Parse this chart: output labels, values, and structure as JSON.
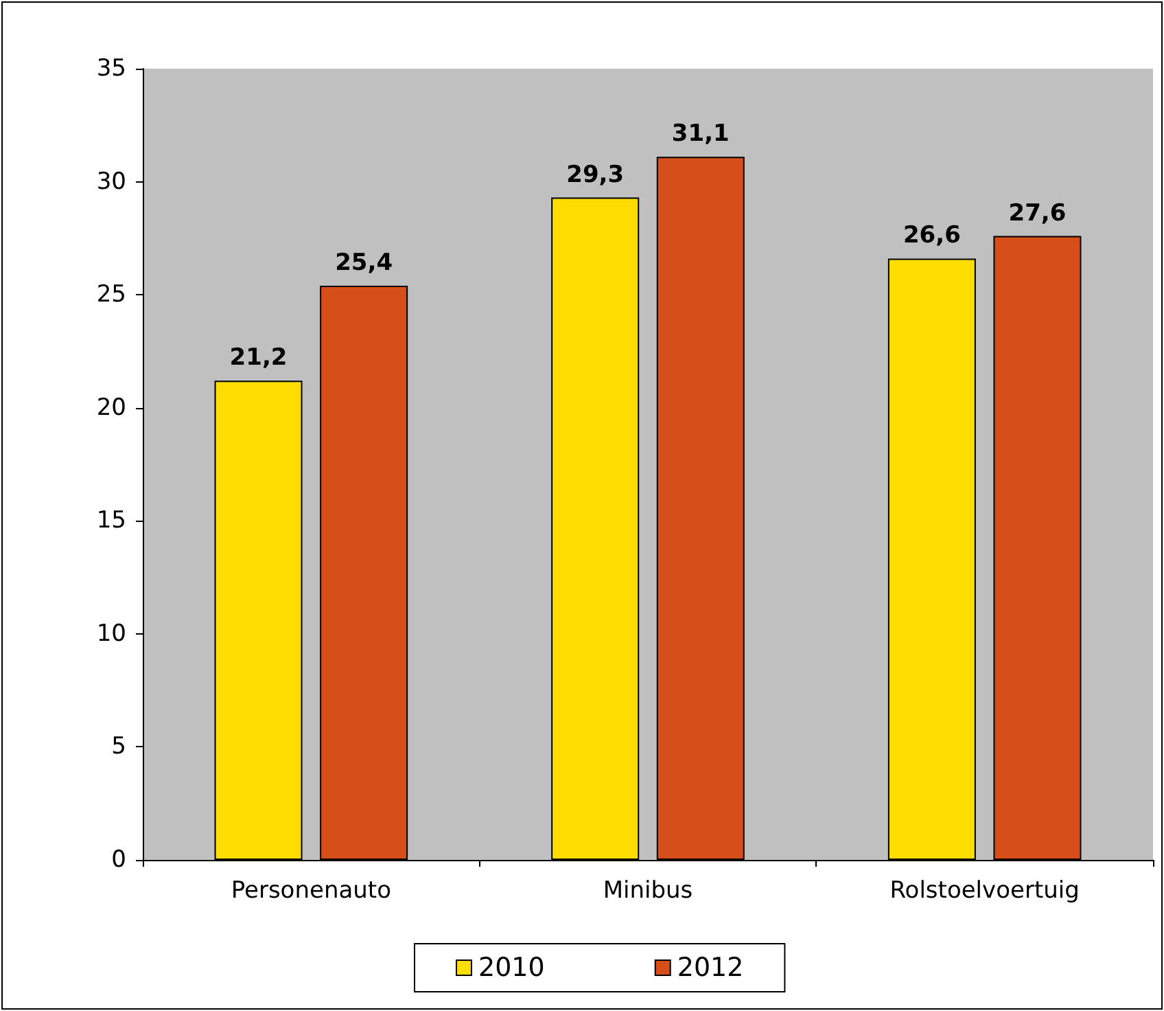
{
  "chart_data": {
    "type": "bar",
    "categories": [
      "Personenauto",
      "Minibus",
      "Rolstoelvoertuig"
    ],
    "series": [
      {
        "name": "2010",
        "color": "#ffdd00",
        "values": [
          21.2,
          29.3,
          26.6
        ],
        "value_labels": [
          "21,2",
          "29,3",
          "26,6"
        ]
      },
      {
        "name": "2012",
        "color": "#d64f1a",
        "values": [
          25.4,
          31.1,
          27.6
        ],
        "value_labels": [
          "25,4",
          "31,1",
          "27,6"
        ]
      }
    ],
    "ylim": [
      0,
      35
    ],
    "yticks": [
      0,
      5,
      10,
      15,
      20,
      25,
      30,
      35
    ],
    "grid": false,
    "legend": "bottom"
  }
}
